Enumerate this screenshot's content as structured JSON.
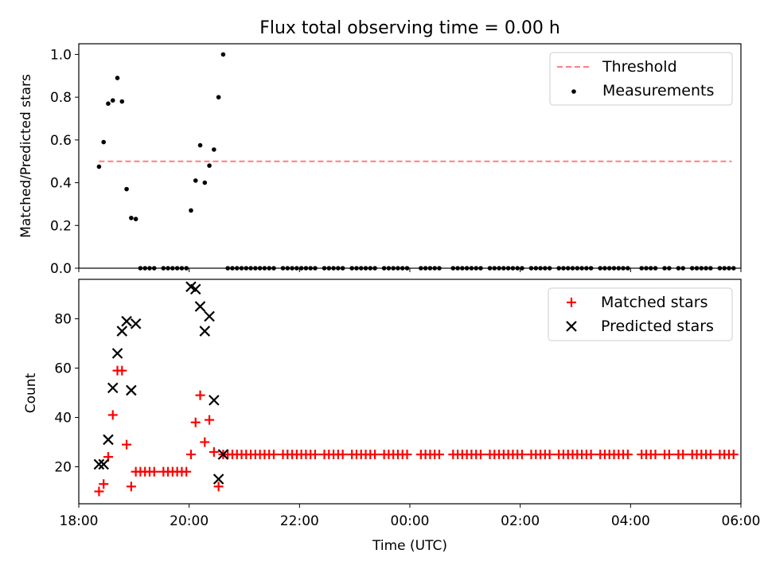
{
  "chart_data": [
    {
      "type": "scatter",
      "title": "Flux total observing time = 0.00 h",
      "xlabel": "",
      "ylabel": "Matched/Predicted stars",
      "xlim": [
        18.0,
        6.0
      ],
      "ylim": [
        0.0,
        1.05
      ],
      "yticks": [
        0.0,
        0.2,
        0.4,
        0.6,
        0.8,
        1.0
      ],
      "ytick_labels": [
        "0.0",
        "0.2",
        "0.4",
        "0.6",
        "0.8",
        "1.0"
      ],
      "legend": {
        "location": "upper right",
        "entries": [
          "Threshold",
          "Measurements"
        ]
      },
      "threshold": {
        "name": "Threshold",
        "value": 0.5,
        "x_range": [
          "18:22",
          "05:50"
        ],
        "color": "#ff7f7f"
      },
      "measurements": {
        "name": "Measurements",
        "color": "#000000",
        "x": [
          "18:22",
          "18:27",
          "18:32",
          "18:37",
          "18:42",
          "18:47",
          "18:52",
          "18:57",
          "19:02",
          "20:02",
          "20:07",
          "20:12",
          "20:17",
          "20:22",
          "20:27",
          "20:32",
          "20:37"
        ],
        "y": [
          0.475,
          0.59,
          0.77,
          0.785,
          0.89,
          0.78,
          0.37,
          0.235,
          0.23,
          0.27,
          0.41,
          0.575,
          0.4,
          0.48,
          0.555,
          0.8,
          1.0
        ]
      },
      "zero_measurements": {
        "ranges": [
          [
            "19:07",
            "19:57",
            "5min"
          ],
          [
            "20:42",
            "23:57",
            "5min"
          ],
          [
            "00:12",
            "00:32",
            "5min"
          ],
          [
            "00:47",
            "03:57",
            "5min"
          ],
          [
            "04:12",
            "05:52",
            "5min"
          ]
        ],
        "skip": [
          "19:27",
          "21:37",
          "22:22",
          "22:52",
          "23:27",
          "00:42",
          "01:22",
          "02:07",
          "02:37",
          "03:22",
          "04:07",
          "04:32",
          "04:47",
          "05:02",
          "05:32"
        ],
        "y": 0.0
      }
    },
    {
      "type": "scatter",
      "title": "",
      "xlabel": "Time (UTC)",
      "ylabel": "Count",
      "xlim": [
        18.0,
        6.0
      ],
      "ylim": [
        5,
        96
      ],
      "yticks": [
        20,
        40,
        60,
        80
      ],
      "ytick_labels": [
        "20",
        "40",
        "60",
        "80"
      ],
      "xticks": [
        "18:00",
        "20:00",
        "22:00",
        "00:00",
        "02:00",
        "04:00",
        "06:00"
      ],
      "legend": {
        "location": "upper right",
        "entries": [
          "Matched stars",
          "Predicted stars"
        ]
      },
      "matched": {
        "name": "Matched stars",
        "color": "#ff0000",
        "x": [
          "18:22",
          "18:27",
          "18:32",
          "18:37",
          "18:42",
          "18:47",
          "18:52",
          "18:57",
          "19:02",
          "20:02",
          "20:07",
          "20:12",
          "20:17",
          "20:22",
          "20:27",
          "20:32",
          "20:37"
        ],
        "y": [
          10,
          13,
          24,
          41,
          59,
          59,
          29,
          12,
          18,
          25,
          38,
          49,
          30,
          39,
          26,
          12,
          25
        ],
        "flat_ranges": [
          [
            "19:07",
            "19:57",
            "5min",
            18
          ],
          [
            "20:42",
            "23:57",
            "5min",
            25
          ],
          [
            "00:12",
            "00:32",
            "5min",
            25
          ],
          [
            "00:47",
            "03:57",
            "5min",
            25
          ],
          [
            "04:12",
            "05:52",
            "5min",
            25
          ]
        ],
        "skip": [
          "19:27",
          "21:37",
          "22:22",
          "22:52",
          "23:27",
          "00:42",
          "01:22",
          "02:07",
          "02:37",
          "03:22",
          "04:07",
          "04:32",
          "04:47",
          "05:02",
          "05:32"
        ]
      },
      "predicted": {
        "name": "Predicted stars",
        "color": "#000000",
        "x": [
          "18:22",
          "18:27",
          "18:32",
          "18:37",
          "18:42",
          "18:47",
          "18:52",
          "18:57",
          "19:02",
          "20:02",
          "20:07",
          "20:12",
          "20:17",
          "20:22",
          "20:27",
          "20:32",
          "20:37"
        ],
        "y": [
          21,
          21,
          31,
          52,
          66,
          75,
          79,
          51,
          78,
          93,
          92,
          85,
          75,
          81,
          47,
          15,
          25
        ]
      }
    }
  ]
}
